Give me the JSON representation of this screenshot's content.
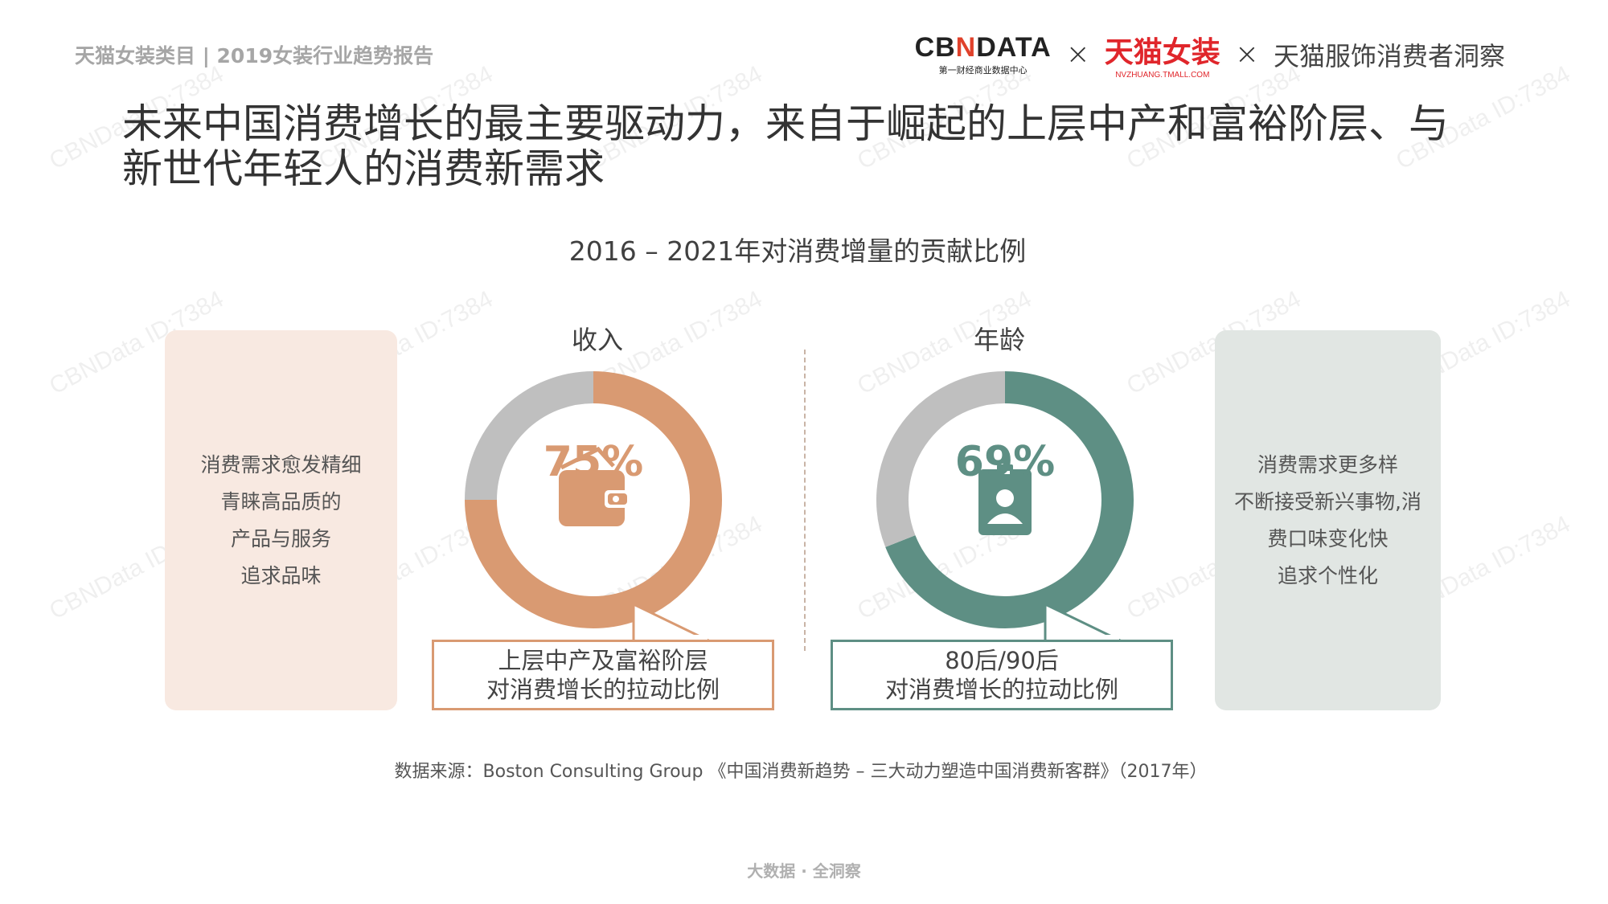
{
  "header": {
    "report_label": "天猫女装类目 | 2019女装行业趋势报告"
  },
  "logos": {
    "cbndata_main": "CB",
    "cbndata_n": "N",
    "cbndata_rest": "DATA",
    "cbndata_sub": "第一财经商业数据中心",
    "tmall_main": "天猫女装",
    "tmall_sub": "NVZHUANG.TMALL.COM",
    "separator": "×",
    "insight": "天猫服饰消费者洞察"
  },
  "title": {
    "line1": "未来中国消费增长的最主要驱动力，来自于崛起的上层中产和富裕阶层、与",
    "line2": "新世代年轻人的消费新需求"
  },
  "subtitle": "2016 – 2021年对消费增量的贡献比例",
  "left_card": {
    "lines": [
      "消费需求愈发精细",
      "青睐高品质的",
      "产品与服务",
      "追求品味"
    ]
  },
  "right_card": {
    "lines": [
      "消费需求更多样",
      "不断接受新兴事物,消",
      "费口味变化快",
      "追求个性化"
    ]
  },
  "chart_data": [
    {
      "type": "pie",
      "title": "收入",
      "value_label": "75%",
      "values": [
        75,
        25
      ],
      "icon": "wallet-icon",
      "colors": [
        "#d99a72",
        "#bfbfbf"
      ],
      "callout": [
        "上层中产及富裕阶层",
        "对消费增长的拉动比例"
      ]
    },
    {
      "type": "pie",
      "title": "年龄",
      "value_label": "69%",
      "values": [
        69,
        31
      ],
      "icon": "id-badge-icon",
      "colors": [
        "#5e8f84",
        "#bfbfbf"
      ],
      "callout": [
        "80后/90后",
        "对消费增长的拉动比例"
      ]
    }
  ],
  "source": "数据来源：Boston Consulting Group 《中国消费新趋势 – 三大动力塑造中国消费新客群》（2017年）",
  "footer": "大数据 · 全洞察",
  "watermark": "CBNData ID:7384"
}
